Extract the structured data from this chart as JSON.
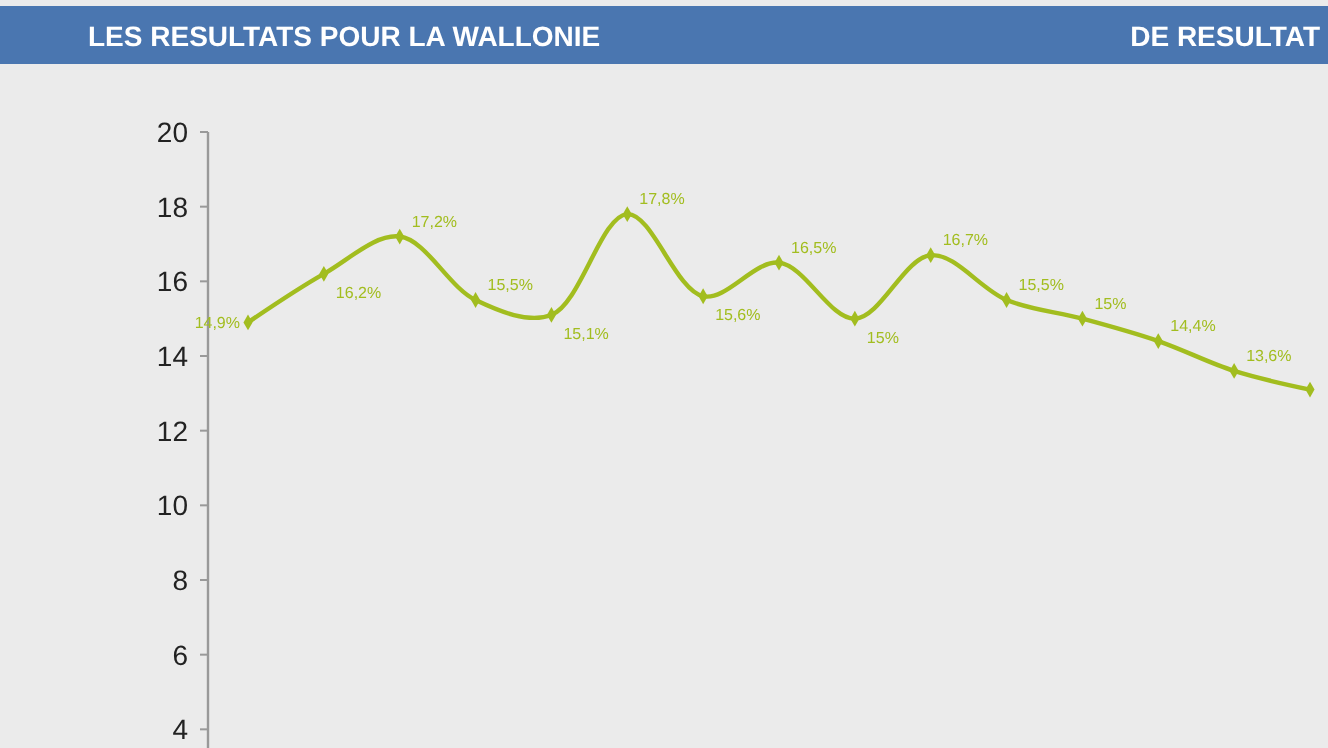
{
  "chart_data": {
    "type": "line",
    "title": "LES RESULTATS POUR LA WALLONIE",
    "subtitle": "DE RESULTAT",
    "categories": [
      null,
      null,
      null,
      null,
      null,
      null,
      null,
      null,
      null,
      null,
      null,
      null,
      null,
      null,
      null
    ],
    "series": [
      {
        "color": "#a2bd1f",
        "values": [
          14.9,
          16.2,
          17.2,
          15.5,
          15.1,
          17.8,
          15.6,
          16.5,
          15,
          16.7,
          15.5,
          15,
          14.4,
          13.6,
          13.1
        ]
      }
    ],
    "value_labels": [
      "14,9%",
      "16,2%",
      "17,2%",
      "15,5%",
      "15,1%",
      "17,8%",
      "15,6%",
      "16,5%",
      "15%",
      "16,7%",
      "15,5%",
      "15%",
      "14,4%",
      "13,6%",
      null
    ],
    "ylim": [
      3.5,
      20
    ],
    "yticks": [
      4,
      6,
      8,
      10,
      12,
      14,
      16,
      18,
      20
    ],
    "grid": false,
    "marker": "diamond",
    "line_style": "solid"
  }
}
